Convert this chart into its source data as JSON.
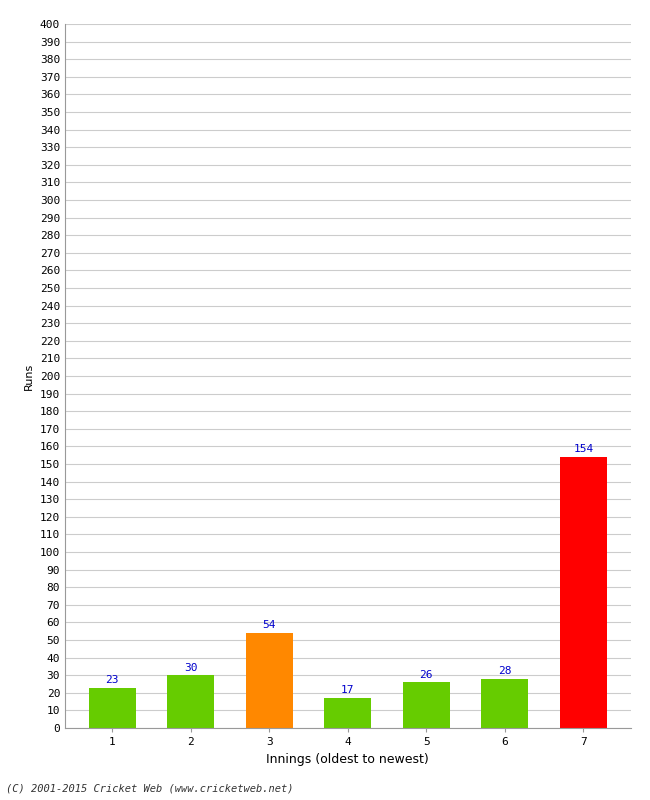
{
  "categories": [
    "1",
    "2",
    "3",
    "4",
    "5",
    "6",
    "7"
  ],
  "values": [
    23,
    30,
    54,
    17,
    26,
    28,
    154
  ],
  "bar_colors": [
    "#66cc00",
    "#66cc00",
    "#ff8800",
    "#66cc00",
    "#66cc00",
    "#66cc00",
    "#ff0000"
  ],
  "xlabel": "Innings (oldest to newest)",
  "ylabel": "Runs",
  "ylim": [
    0,
    400
  ],
  "ytick_step": 10,
  "label_color": "#0000cc",
  "label_fontsize": 8,
  "axis_tick_fontsize": 8,
  "background_color": "#ffffff",
  "grid_color": "#cccccc",
  "footer": "(C) 2001-2015 Cricket Web (www.cricketweb.net)"
}
